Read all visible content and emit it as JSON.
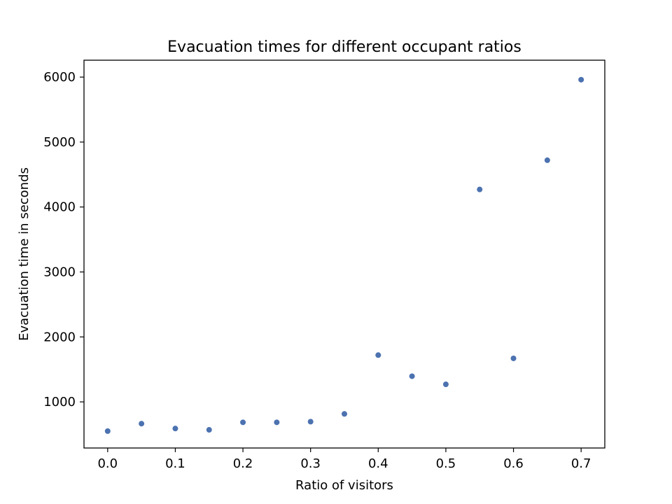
{
  "chart_data": {
    "type": "scatter",
    "title": "Evacuation times for different occupant ratios",
    "xlabel": "Ratio of visitors",
    "ylabel": "Evacuation time in seconds",
    "xlim": [
      -0.035,
      0.735
    ],
    "ylim": [
      290,
      6260
    ],
    "xticks": [
      0.0,
      0.1,
      0.2,
      0.3,
      0.4,
      0.5,
      0.6,
      0.7
    ],
    "xtick_labels": [
      "0.0",
      "0.1",
      "0.2",
      "0.3",
      "0.4",
      "0.5",
      "0.6",
      "0.7"
    ],
    "yticks": [
      1000,
      2000,
      3000,
      4000,
      5000,
      6000
    ],
    "ytick_labels": [
      "1000",
      "2000",
      "3000",
      "4000",
      "5000",
      "6000"
    ],
    "grid": false,
    "marker_color": "#4c72b0",
    "series": [
      {
        "name": "Evacuation time",
        "x": [
          0.0,
          0.05,
          0.1,
          0.15,
          0.2,
          0.25,
          0.3,
          0.35,
          0.4,
          0.45,
          0.5,
          0.55,
          0.6,
          0.65,
          0.7
        ],
        "y": [
          550,
          665,
          590,
          570,
          685,
          685,
          695,
          815,
          1720,
          1395,
          1270,
          4270,
          1670,
          4720,
          5960
        ]
      }
    ]
  }
}
